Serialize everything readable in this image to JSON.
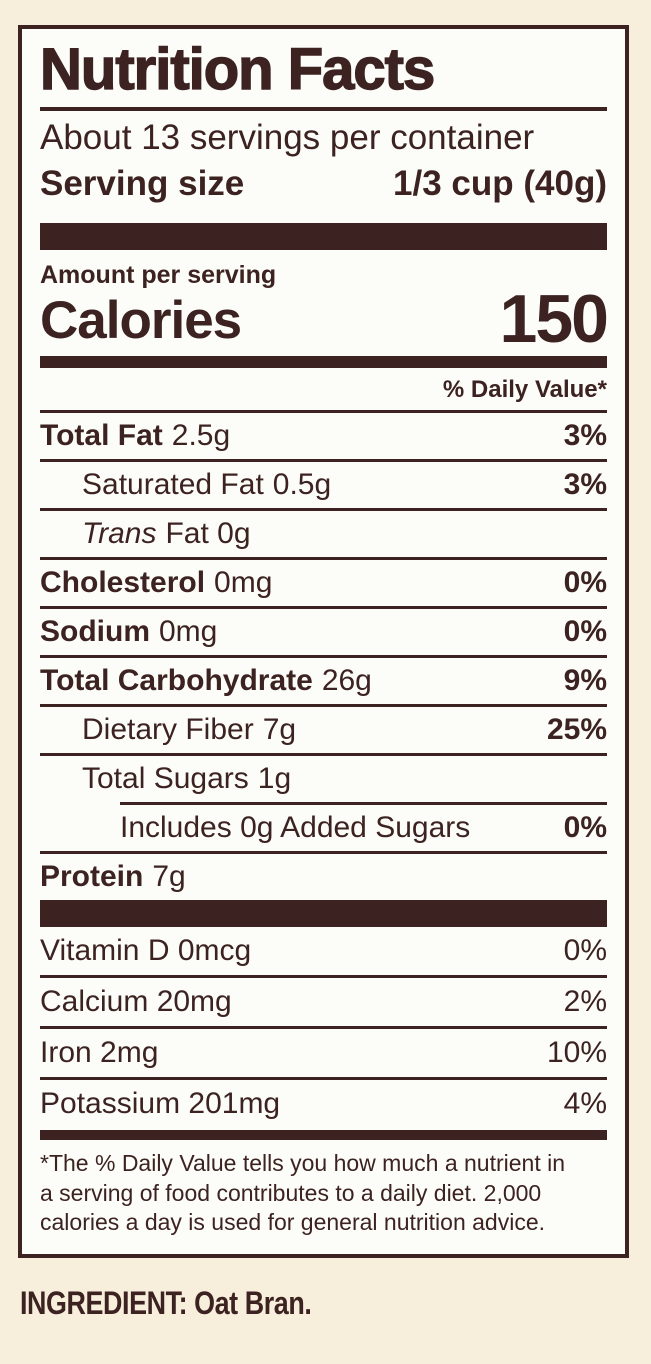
{
  "colors": {
    "brown": "#3c2220",
    "label_bg": "#fcfdf8",
    "page_bg": "#f7eedb"
  },
  "label": {
    "title": "Nutrition Facts",
    "servings_per_container": "About 13 servings per container",
    "serving_size": {
      "label": "Serving size",
      "value": "1/3 cup (40g)"
    },
    "amount_per_serving": "Amount per serving",
    "calories": {
      "label": "Calories",
      "value": "150"
    },
    "daily_value_header": "% Daily Value*",
    "rows": {
      "total_fat": {
        "name": "Total Fat",
        "amount": "2.5g",
        "dv": "3%"
      },
      "saturated_fat": {
        "name": "Saturated Fat",
        "amount": "0.5g",
        "dv": "3%"
      },
      "trans_fat": {
        "name": "Trans",
        "amount": "Fat 0g",
        "dv": ""
      },
      "cholesterol": {
        "name": "Cholesterol",
        "amount": "0mg",
        "dv": "0%"
      },
      "sodium": {
        "name": "Sodium",
        "amount": "0mg",
        "dv": "0%"
      },
      "total_carbohydrate": {
        "name": "Total Carbohydrate",
        "amount": "26g",
        "dv": "9%"
      },
      "dietary_fiber": {
        "name": "Dietary Fiber",
        "amount": "7g",
        "dv": "25%"
      },
      "total_sugars": {
        "name": "Total Sugars",
        "amount": "1g",
        "dv": ""
      },
      "added_sugars": {
        "name": "Includes 0g Added Sugars",
        "amount": "",
        "dv": "0%"
      },
      "protein": {
        "name": "Protein",
        "amount": "7g",
        "dv": ""
      }
    },
    "vitamins": {
      "vitamin_d": {
        "name": "Vitamin D 0mcg",
        "dv": "0%"
      },
      "calcium": {
        "name": "Calcium 20mg",
        "dv": "2%"
      },
      "iron": {
        "name": "Iron 2mg",
        "dv": "10%"
      },
      "potassium": {
        "name": "Potassium 201mg",
        "dv": "4%"
      }
    },
    "footnote_lines": [
      "*The % Daily Value tells you how much a nutrient in",
      "a serving of food contributes to a daily diet. 2,000",
      "calories a day is used for general nutrition advice."
    ]
  },
  "ingredient_line": "INGREDIENT: Oat Bran."
}
